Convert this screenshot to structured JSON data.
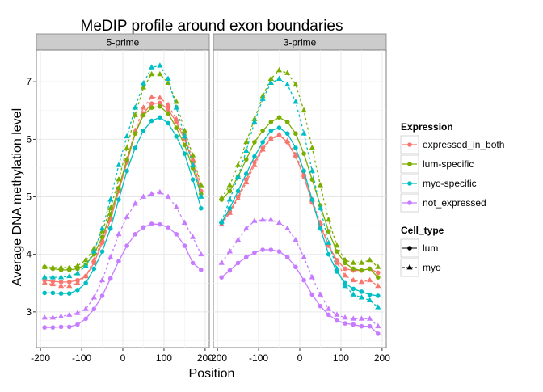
{
  "chart_data": {
    "type": "line",
    "title": "MeDIP profile around exon boundaries",
    "xlabel": "Position",
    "ylabel": "Average DNA methylation level",
    "xlim": [
      -210,
      210
    ],
    "ylim": [
      2.38,
      7.55
    ],
    "x_ticks": [
      -200,
      -100,
      0,
      100,
      200
    ],
    "x_tick_labels": [
      "-200",
      "-100",
      "0",
      "100",
      "200"
    ],
    "y_ticks": [
      3,
      4,
      5,
      6,
      7
    ],
    "y_tick_labels": [
      "3",
      "4",
      "5",
      "6",
      "7"
    ],
    "grid": true,
    "legend_position": "right",
    "x": [
      -190,
      -170,
      -150,
      -130,
      -110,
      -90,
      -70,
      -50,
      -30,
      -10,
      10,
      30,
      50,
      70,
      90,
      110,
      130,
      150,
      170,
      190
    ],
    "legends": [
      {
        "title": "Expression",
        "entries": [
          {
            "key": "expressed_in_both",
            "label": "expressed_in_both",
            "color": "#F8766D"
          },
          {
            "key": "lum-specific",
            "label": "lum-specific",
            "color": "#7CAE00"
          },
          {
            "key": "myo-specific",
            "label": "myo-specific",
            "color": "#00BFC4"
          },
          {
            "key": "not_expressed",
            "label": "not_expressed",
            "color": "#C77CFF"
          }
        ]
      },
      {
        "title": "Cell_type",
        "entries": [
          {
            "key": "lum",
            "label": "lum",
            "linetype": "solid",
            "shape": "circle"
          },
          {
            "key": "myo",
            "label": "myo",
            "linetype": "dashed",
            "shape": "triangle"
          }
        ]
      }
    ],
    "panels": [
      {
        "label": "5-prime",
        "series": [
          {
            "expression": "expressed_in_both",
            "cell_type": "lum",
            "values": [
              3.55,
              3.53,
              3.52,
              3.52,
              3.55,
              3.62,
              3.85,
              4.2,
              4.6,
              5.1,
              5.6,
              6.1,
              6.45,
              6.62,
              6.63,
              6.52,
              6.3,
              6.0,
              5.6,
              5.1
            ]
          },
          {
            "expression": "expressed_in_both",
            "cell_type": "myo",
            "values": [
              3.5,
              3.48,
              3.45,
              3.45,
              3.5,
              3.62,
              3.9,
              4.25,
              4.65,
              5.15,
              5.65,
              6.15,
              6.55,
              6.73,
              6.72,
              6.6,
              6.35,
              6.05,
              5.65,
              5.2
            ]
          },
          {
            "expression": "lum-specific",
            "cell_type": "lum",
            "values": [
              3.78,
              3.75,
              3.73,
              3.73,
              3.75,
              3.82,
              4.0,
              4.3,
              4.7,
              5.15,
              5.65,
              6.1,
              6.42,
              6.55,
              6.57,
              6.45,
              6.2,
              5.9,
              5.5,
              5.05
            ]
          },
          {
            "expression": "lum-specific",
            "cell_type": "myo",
            "values": [
              3.78,
              3.77,
              3.77,
              3.77,
              3.8,
              3.9,
              4.1,
              4.4,
              4.8,
              5.3,
              5.85,
              6.42,
              6.9,
              7.13,
              7.13,
              6.98,
              6.65,
              6.15,
              5.72,
              5.2
            ]
          },
          {
            "expression": "myo-specific",
            "cell_type": "lum",
            "values": [
              3.33,
              3.33,
              3.32,
              3.32,
              3.38,
              3.5,
              3.75,
              4.05,
              4.45,
              4.95,
              5.45,
              5.85,
              6.15,
              6.32,
              6.38,
              6.28,
              6.05,
              5.75,
              5.3,
              4.8
            ]
          },
          {
            "expression": "myo-specific",
            "cell_type": "myo",
            "values": [
              3.6,
              3.6,
              3.6,
              3.62,
              3.67,
              3.8,
              4.05,
              4.45,
              4.95,
              5.55,
              6.05,
              6.55,
              6.97,
              7.25,
              7.28,
              7.05,
              6.55,
              6.05,
              5.55,
              5.0
            ]
          },
          {
            "expression": "not_expressed",
            "cell_type": "lum",
            "values": [
              2.73,
              2.73,
              2.74,
              2.74,
              2.78,
              2.88,
              3.05,
              3.28,
              3.58,
              3.88,
              4.15,
              4.35,
              4.47,
              4.53,
              4.52,
              4.47,
              4.35,
              4.15,
              3.85,
              3.73
            ]
          },
          {
            "expression": "not_expressed",
            "cell_type": "myo",
            "values": [
              2.9,
              2.9,
              2.92,
              2.95,
              2.98,
              3.05,
              3.25,
              3.55,
              3.95,
              4.35,
              4.65,
              4.88,
              5.0,
              5.05,
              5.08,
              5.0,
              4.82,
              4.55,
              4.3,
              4.0
            ]
          }
        ]
      },
      {
        "label": "3-prime",
        "series": [
          {
            "expression": "expressed_in_both",
            "cell_type": "lum",
            "values": [
              4.55,
              4.75,
              5.0,
              5.3,
              5.6,
              5.85,
              6.02,
              6.07,
              5.95,
              5.7,
              5.35,
              4.9,
              4.5,
              4.15,
              3.9,
              3.75,
              3.72,
              3.72,
              3.75,
              3.68
            ]
          },
          {
            "expression": "expressed_in_both",
            "cell_type": "myo",
            "values": [
              4.52,
              4.72,
              4.97,
              5.25,
              5.55,
              5.82,
              6.0,
              6.07,
              5.97,
              5.73,
              5.4,
              4.95,
              4.55,
              4.15,
              3.85,
              3.63,
              3.55,
              3.52,
              3.55,
              3.45
            ]
          },
          {
            "expression": "lum-specific",
            "cell_type": "lum",
            "values": [
              4.95,
              5.1,
              5.35,
              5.65,
              5.95,
              6.15,
              6.3,
              6.38,
              6.3,
              6.1,
              5.75,
              5.3,
              4.85,
              4.4,
              4.05,
              3.85,
              3.75,
              3.72,
              3.75,
              3.6
            ]
          },
          {
            "expression": "lum-specific",
            "cell_type": "myo",
            "values": [
              4.98,
              5.2,
              5.55,
              5.95,
              6.35,
              6.75,
              7.05,
              7.2,
              7.15,
              6.95,
              6.5,
              5.85,
              5.2,
              4.6,
              4.15,
              3.9,
              3.85,
              3.85,
              3.9,
              3.78
            ]
          },
          {
            "expression": "myo-specific",
            "cell_type": "lum",
            "values": [
              4.55,
              4.8,
              5.1,
              5.4,
              5.7,
              5.95,
              6.15,
              6.2,
              6.1,
              5.85,
              5.45,
              4.95,
              4.45,
              4.0,
              3.7,
              3.5,
              3.4,
              3.35,
              3.3,
              3.28
            ]
          },
          {
            "expression": "myo-specific",
            "cell_type": "myo",
            "values": [
              4.57,
              4.95,
              5.35,
              5.8,
              6.3,
              6.7,
              6.98,
              7.05,
              6.95,
              6.65,
              6.1,
              5.45,
              4.8,
              4.2,
              3.75,
              3.45,
              3.3,
              3.25,
              3.2,
              3.08
            ]
          },
          {
            "expression": "not_expressed",
            "cell_type": "lum",
            "values": [
              3.6,
              3.72,
              3.85,
              3.95,
              4.03,
              4.08,
              4.08,
              4.05,
              3.95,
              3.78,
              3.55,
              3.3,
              3.1,
              2.95,
              2.85,
              2.8,
              2.78,
              2.75,
              2.75,
              2.62
            ]
          },
          {
            "expression": "not_expressed",
            "cell_type": "myo",
            "values": [
              3.85,
              4.05,
              4.25,
              4.45,
              4.58,
              4.6,
              4.6,
              4.55,
              4.45,
              4.25,
              3.95,
              3.6,
              3.3,
              3.05,
              2.95,
              2.9,
              2.88,
              2.88,
              2.88,
              2.75
            ]
          }
        ]
      }
    ]
  }
}
